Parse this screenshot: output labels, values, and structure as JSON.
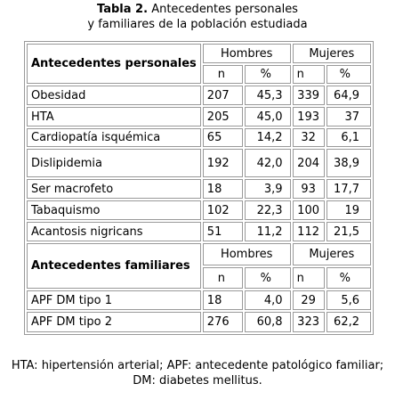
{
  "title": {
    "label": "Tabla 2.",
    "text": "Antecedentes personales",
    "line2": "y familiares de la población estudiada"
  },
  "table": {
    "sections": [
      {
        "header": "Antecedentes personales",
        "groups": [
          "Hombres",
          "Mujeres"
        ],
        "subheaders": [
          "n",
          "%",
          "n",
          "%"
        ],
        "rows": [
          [
            "Obesidad",
            "207",
            "45,3",
            "339",
            "64,9"
          ],
          [
            "HTA",
            "205",
            "45,0",
            "193",
            "37"
          ],
          [
            "Cardiopatía isquémica",
            "65",
            "14,2",
            "32",
            "6,1"
          ],
          [
            "Dislipidemia",
            "192",
            "42,0",
            "204",
            "38,9"
          ],
          [
            "Ser macrofeto",
            "18",
            "3,9",
            "93",
            "17,7"
          ],
          [
            "Tabaquismo",
            "102",
            "22,3",
            "100",
            "19"
          ],
          [
            "Acantosis nigricans",
            "51",
            "11,2",
            "112",
            "21,5"
          ]
        ]
      },
      {
        "header": "Antecedentes familiares",
        "groups": [
          "Hombres",
          "Mujeres"
        ],
        "subheaders": [
          "n",
          "%",
          "n",
          "%"
        ],
        "rows": [
          [
            "APF DM tipo 1",
            "18",
            "4,0",
            "29",
            "5,6"
          ],
          [
            "APF DM tipo 2",
            "276",
            "60,8",
            "323",
            "62,2"
          ]
        ]
      }
    ]
  },
  "footnote": "HTA: hipertensión arterial; APF: antecedente patológico familiar; DM: diabetes mellitus."
}
